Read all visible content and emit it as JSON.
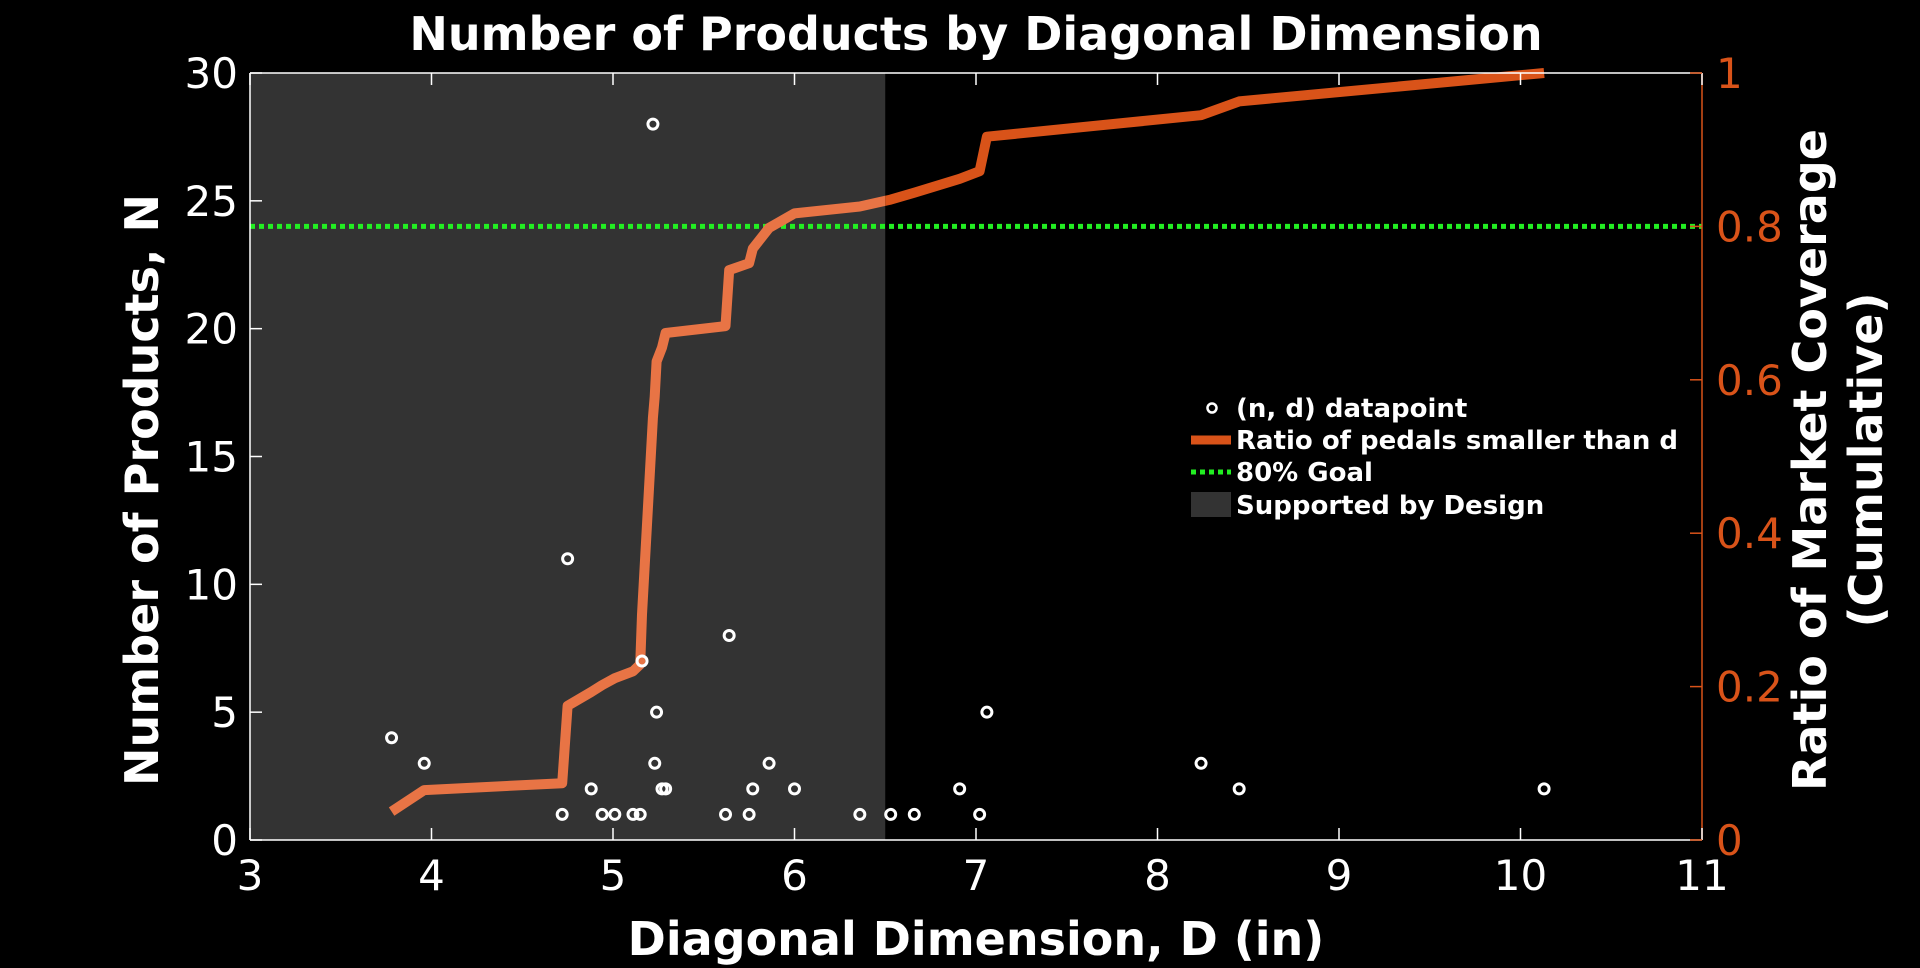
{
  "chart_data": {
    "type": "scatter",
    "title": "Number of Products by Diagonal Dimension",
    "xlabel": "Diagonal Dimension, D (in)",
    "ylabel": "Number of Products, N",
    "y2label": [
      "Ratio of Market Coverage",
      "(Cumulative)"
    ],
    "xlim": [
      3,
      11
    ],
    "ylim": [
      0,
      30
    ],
    "y2lim": [
      0,
      1
    ],
    "x_ticks": [
      3,
      4,
      5,
      6,
      7,
      8,
      9,
      10,
      11
    ],
    "y_ticks": [
      0,
      5,
      10,
      15,
      20,
      25,
      30
    ],
    "y2_ticks": [
      "0",
      "0.2",
      "0.4",
      "0.6",
      "0.8",
      "1"
    ],
    "y2_tick_values": [
      0,
      0.2,
      0.4,
      0.6,
      0.8,
      1
    ],
    "grid": false,
    "legend_position": "center-right",
    "colors": {
      "background": "#000000",
      "shaded_region": "#333333",
      "points": "#ffffff",
      "ratio_line": "#d95319",
      "ratio_line_in_region": "#e87445",
      "goal_line": "#22ee22",
      "right_axis": "#d95319"
    },
    "shaded_region": {
      "name": "Supported by Design",
      "x": [
        3,
        6.5
      ]
    },
    "goal": {
      "name": "80% Goal",
      "y2": 0.8
    },
    "datapoints": {
      "name": "(n, d) datapoint",
      "x": [
        3.78,
        3.96,
        4.72,
        4.75,
        4.88,
        4.94,
        5.01,
        5.11,
        5.15,
        5.16,
        5.22,
        5.23,
        5.24,
        5.27,
        5.29,
        5.62,
        5.64,
        5.75,
        5.77,
        5.86,
        6.0,
        6.36,
        6.53,
        6.66,
        6.91,
        7.02,
        7.06,
        8.24,
        8.45,
        10.13
      ],
      "y": [
        4,
        3,
        1,
        11,
        2,
        1,
        1,
        1,
        1,
        7,
        28,
        3,
        5,
        2,
        2,
        1,
        8,
        1,
        2,
        3,
        2,
        1,
        1,
        1,
        2,
        1,
        5,
        3,
        2,
        2
      ]
    },
    "ratio_series": {
      "name": "Ratio of pedals smaller than d",
      "x": [
        3.78,
        3.96,
        4.72,
        4.75,
        4.88,
        4.94,
        5.01,
        5.11,
        5.15,
        5.16,
        5.22,
        5.23,
        5.24,
        5.27,
        5.29,
        5.62,
        5.64,
        5.75,
        5.77,
        5.86,
        6.0,
        6.36,
        6.53,
        6.66,
        6.91,
        7.02,
        7.06,
        8.24,
        8.45,
        10.13
      ],
      "y2": [
        0.037,
        0.065,
        0.074,
        0.175,
        0.193,
        0.202,
        0.211,
        0.22,
        0.229,
        0.294,
        0.55,
        0.578,
        0.624,
        0.642,
        0.661,
        0.67,
        0.743,
        0.752,
        0.771,
        0.798,
        0.817,
        0.826,
        0.835,
        0.844,
        0.862,
        0.872,
        0.917,
        0.945,
        0.963,
        1.0
      ]
    }
  }
}
